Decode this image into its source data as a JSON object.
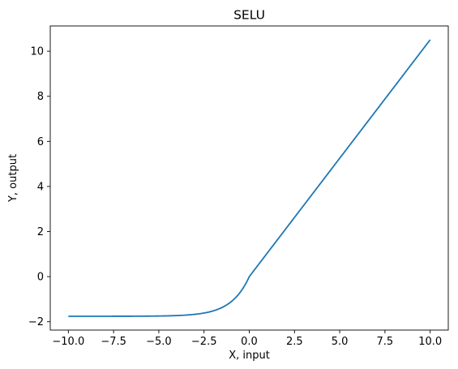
{
  "chart_data": {
    "type": "line",
    "title": "SELU",
    "xlabel": "X, input",
    "ylabel": "Y, output",
    "xlim": [
      -11.0,
      11.0
    ],
    "ylim": [
      -2.37,
      11.12
    ],
    "xticks": [
      -10.0,
      -7.5,
      -5.0,
      -2.5,
      0.0,
      2.5,
      5.0,
      7.5,
      10.0
    ],
    "xtick_labels": [
      "−10.0",
      "−7.5",
      "−5.0",
      "−2.5",
      "0.0",
      "2.5",
      "5.0",
      "7.5",
      "10.0"
    ],
    "yticks": [
      -2,
      0,
      2,
      4,
      6,
      8,
      10
    ],
    "ytick_labels": [
      "−2",
      "0",
      "2",
      "4",
      "6",
      "8",
      "10"
    ],
    "grid": false,
    "series": [
      {
        "color": "#1f77b4",
        "function": "selu",
        "x_range": [
          -10.0,
          10.0
        ],
        "scale": 1.0507,
        "alpha": 1.67326
      }
    ]
  }
}
